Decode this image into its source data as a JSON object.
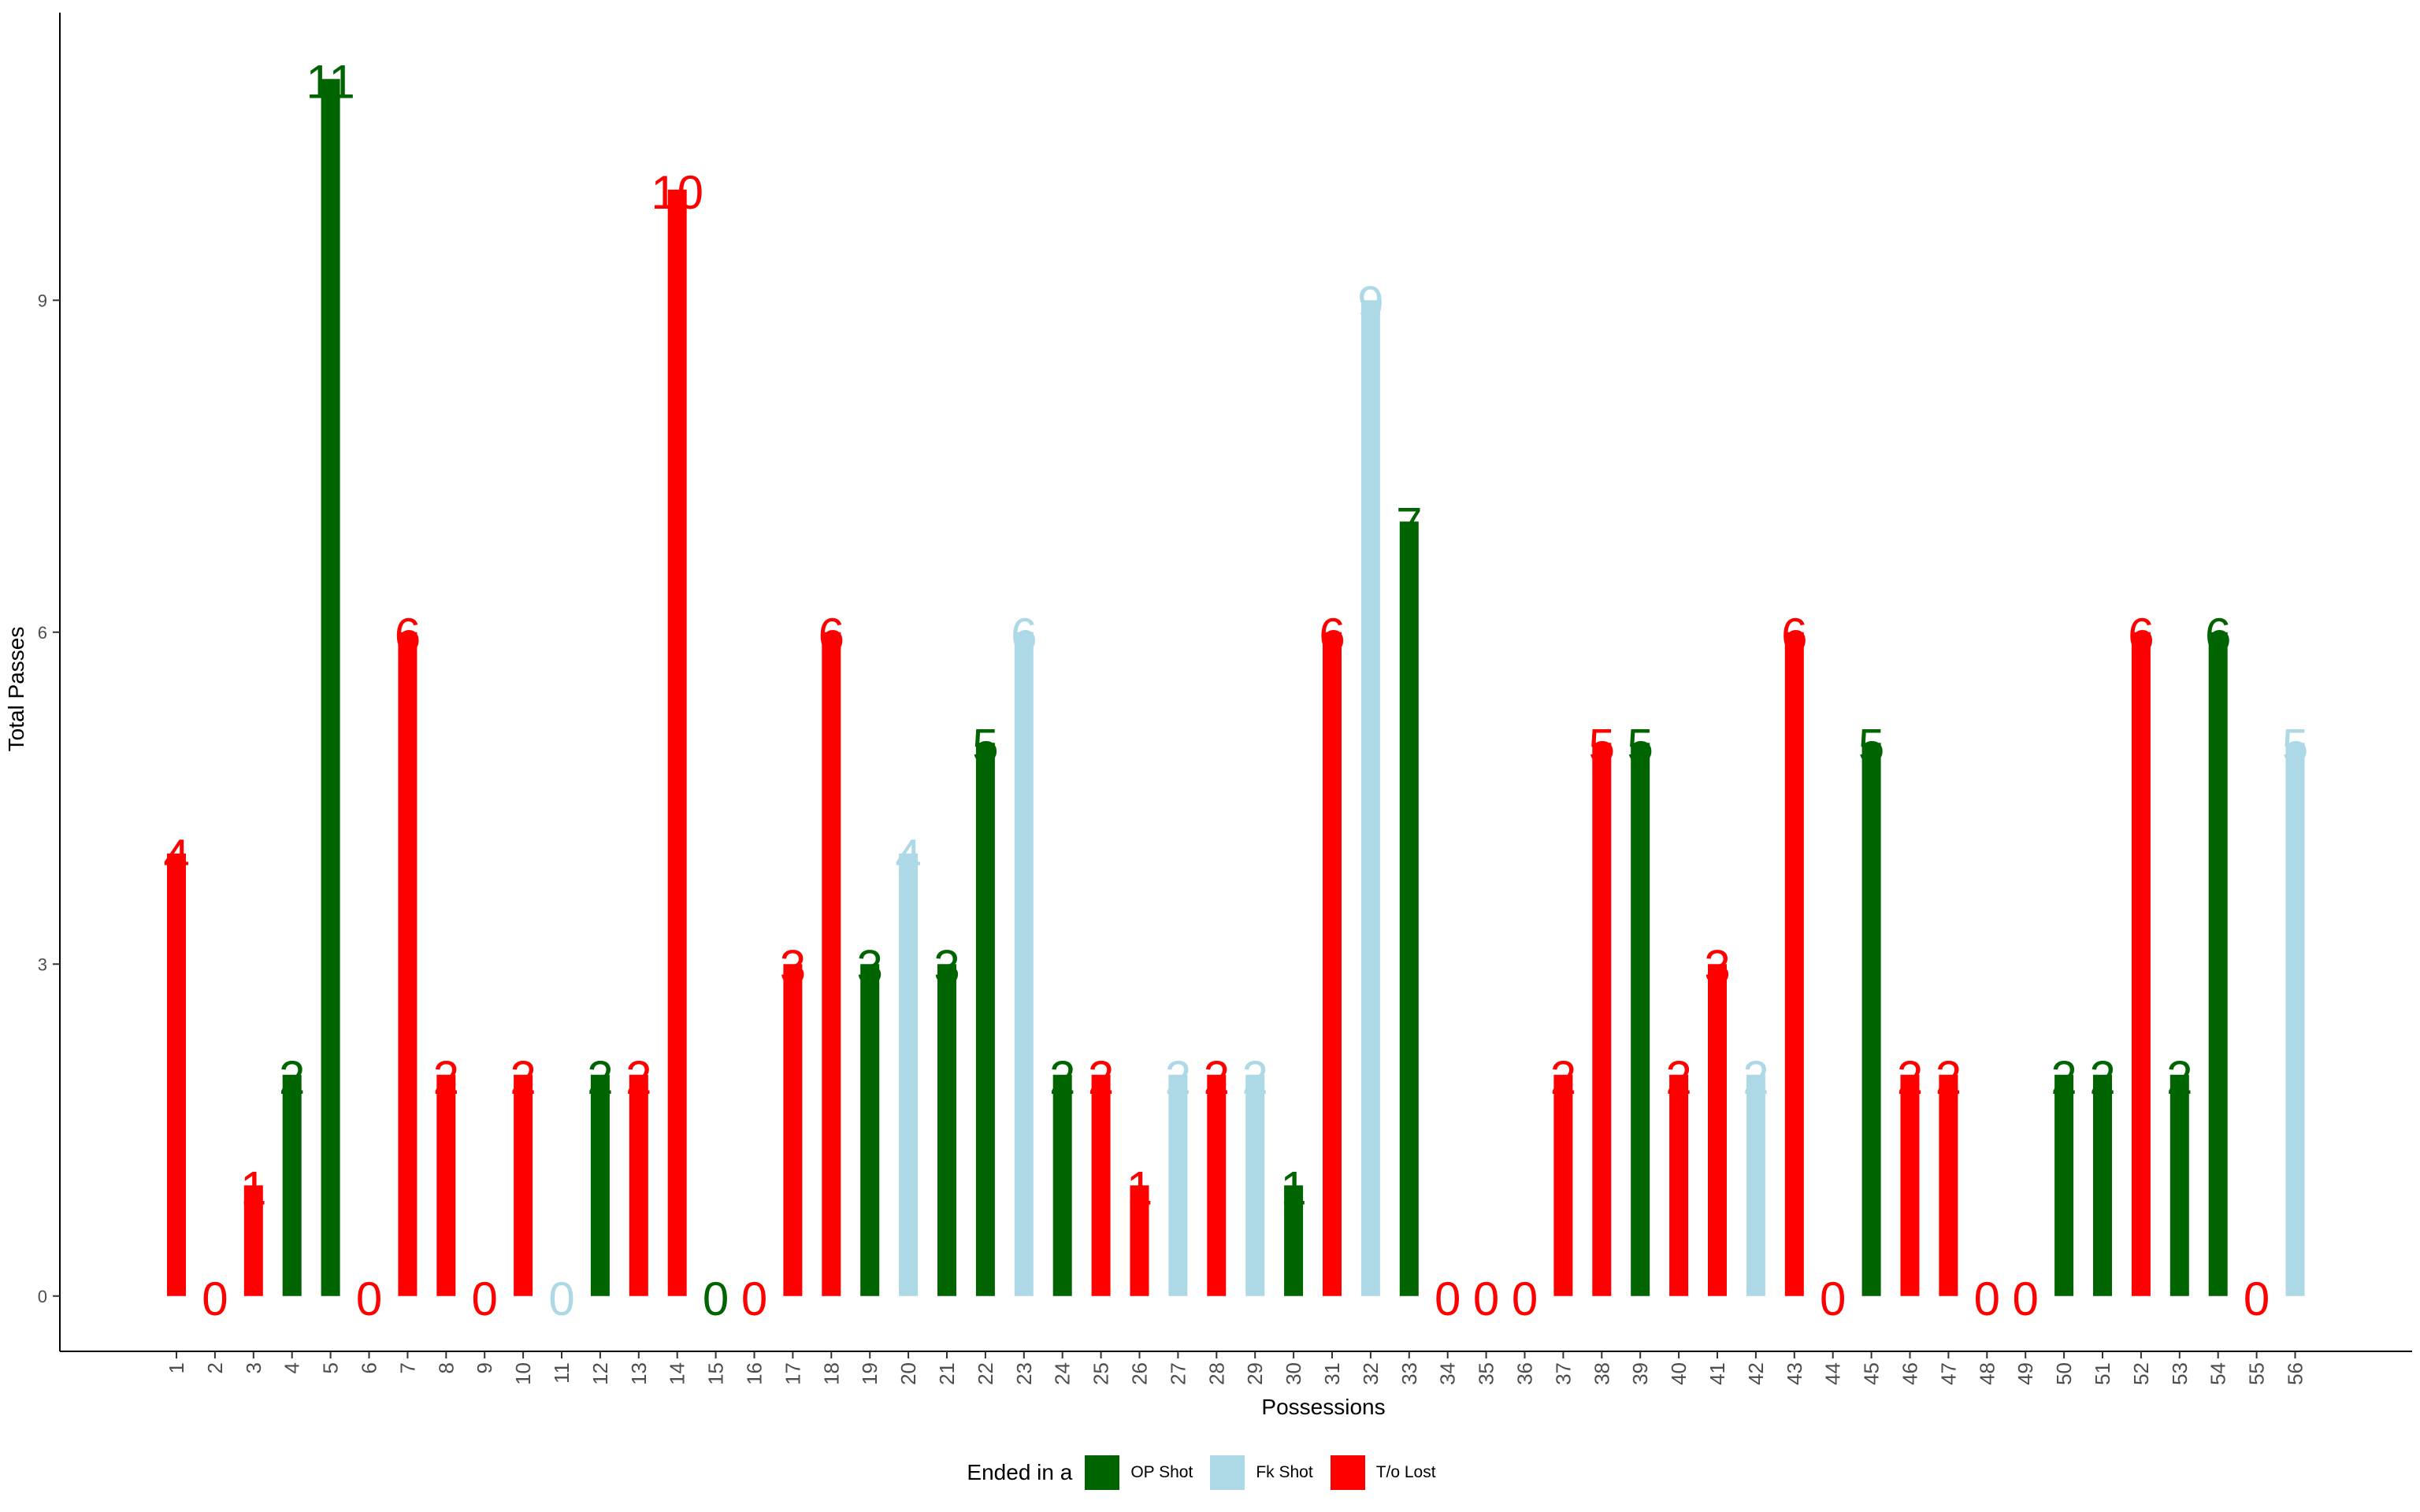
{
  "chart_data": {
    "type": "bar",
    "title": "",
    "xlabel": "Possessions",
    "ylabel": "Total Passes",
    "ylim": [
      -0.5,
      11.6
    ],
    "yticks": [
      0,
      3,
      6,
      9
    ],
    "categories": [
      "1",
      "2",
      "3",
      "4",
      "5",
      "6",
      "7",
      "8",
      "9",
      "10",
      "11",
      "12",
      "13",
      "14",
      "15",
      "16",
      "17",
      "18",
      "19",
      "20",
      "21",
      "22",
      "23",
      "24",
      "25",
      "26",
      "27",
      "28",
      "29",
      "30",
      "31",
      "32",
      "33",
      "34",
      "35",
      "36",
      "37",
      "38",
      "39",
      "40",
      "41",
      "42",
      "43",
      "44",
      "45",
      "46",
      "47",
      "48",
      "49",
      "50",
      "51",
      "52",
      "53",
      "54",
      "55",
      "56"
    ],
    "values": [
      4,
      0,
      1,
      2,
      11,
      0,
      6,
      2,
      0,
      2,
      0,
      2,
      2,
      10,
      0,
      0,
      3,
      6,
      3,
      4,
      3,
      5,
      6,
      2,
      2,
      1,
      2,
      2,
      2,
      1,
      6,
      9,
      7,
      0,
      0,
      0,
      2,
      5,
      5,
      2,
      3,
      2,
      6,
      0,
      5,
      2,
      2,
      0,
      0,
      2,
      2,
      6,
      2,
      6,
      0,
      5
    ],
    "outcome": [
      "T/o Lost",
      "T/o Lost",
      "T/o Lost",
      "OP Shot",
      "OP Shot",
      "T/o Lost",
      "T/o Lost",
      "T/o Lost",
      "T/o Lost",
      "T/o Lost",
      "Fk Shot",
      "OP Shot",
      "T/o Lost",
      "T/o Lost",
      "OP Shot",
      "T/o Lost",
      "T/o Lost",
      "T/o Lost",
      "OP Shot",
      "Fk Shot",
      "OP Shot",
      "OP Shot",
      "Fk Shot",
      "OP Shot",
      "T/o Lost",
      "T/o Lost",
      "Fk Shot",
      "T/o Lost",
      "Fk Shot",
      "OP Shot",
      "T/o Lost",
      "Fk Shot",
      "OP Shot",
      "T/o Lost",
      "T/o Lost",
      "T/o Lost",
      "T/o Lost",
      "T/o Lost",
      "OP Shot",
      "T/o Lost",
      "T/o Lost",
      "Fk Shot",
      "T/o Lost",
      "T/o Lost",
      "OP Shot",
      "T/o Lost",
      "T/o Lost",
      "T/o Lost",
      "T/o Lost",
      "OP Shot",
      "OP Shot",
      "T/o Lost",
      "OP Shot",
      "OP Shot",
      "T/o Lost",
      "Fk Shot"
    ],
    "legend": {
      "title": "Ended in a",
      "placement": "bottom",
      "entries": [
        {
          "label": "OP Shot",
          "color": "#006400"
        },
        {
          "label": "Fk Shot",
          "color": "#ADD8E6"
        },
        {
          "label": "T/o Lost",
          "color": "#FF0000"
        }
      ]
    },
    "grid": false
  }
}
